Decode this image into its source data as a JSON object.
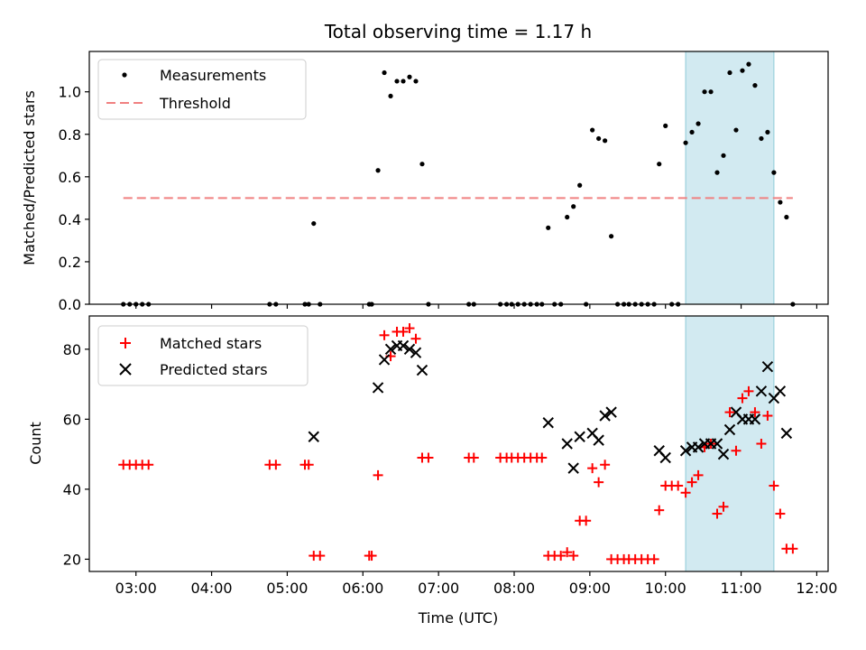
{
  "chart_data": {
    "type": "scatter",
    "title": "Total observing time = 1.17 h",
    "xlabel": "Time (UTC)",
    "x_ticks": [
      "03:00",
      "04:00",
      "05:00",
      "06:00",
      "07:00",
      "08:00",
      "09:00",
      "10:00",
      "11:00",
      "12:00"
    ],
    "xlim": [
      "02:23",
      "12:09"
    ],
    "highlight_span": {
      "start": "10:16",
      "end": "11:26",
      "color": "#add8e6"
    },
    "top_panel": {
      "ylabel": "Matched/Predicted stars",
      "ylim": [
        0,
        1.19
      ],
      "y_ticks": [
        "0.0",
        "0.2",
        "0.4",
        "0.6",
        "0.8",
        "1.0"
      ],
      "legend": {
        "position": "upper-left",
        "entries": [
          "Measurements",
          "Threshold"
        ]
      },
      "threshold": {
        "name": "Threshold",
        "value": 0.5,
        "x_start": "02:50",
        "x_end": "11:41",
        "color": "#f08080",
        "style": "dashed"
      },
      "series": [
        {
          "name": "Measurements",
          "marker": "dot",
          "color": "#000000",
          "points": [
            [
              "02:50",
              0
            ],
            [
              "02:55",
              0
            ],
            [
              "03:00",
              0
            ],
            [
              "03:05",
              0
            ],
            [
              "03:10",
              0
            ],
            [
              "04:46",
              0
            ],
            [
              "04:51",
              0
            ],
            [
              "05:14",
              0
            ],
            [
              "05:17",
              0
            ],
            [
              "05:21",
              0.38
            ],
            [
              "05:26",
              0
            ],
            [
              "06:05",
              0
            ],
            [
              "06:07",
              0
            ],
            [
              "06:12",
              0.63
            ],
            [
              "06:17",
              1.09
            ],
            [
              "06:22",
              0.98
            ],
            [
              "06:27",
              1.05
            ],
            [
              "06:32",
              1.05
            ],
            [
              "06:37",
              1.07
            ],
            [
              "06:42",
              1.05
            ],
            [
              "06:47",
              0.66
            ],
            [
              "06:52",
              0
            ],
            [
              "07:24",
              0
            ],
            [
              "07:28",
              0
            ],
            [
              "07:49",
              0
            ],
            [
              "07:54",
              0
            ],
            [
              "07:58",
              0
            ],
            [
              "08:03",
              0
            ],
            [
              "08:08",
              0
            ],
            [
              "08:13",
              0
            ],
            [
              "08:18",
              0
            ],
            [
              "08:22",
              0
            ],
            [
              "08:27",
              0.36
            ],
            [
              "08:32",
              0
            ],
            [
              "08:37",
              0
            ],
            [
              "08:42",
              0.41
            ],
            [
              "08:47",
              0.46
            ],
            [
              "08:52",
              0.56
            ],
            [
              "08:57",
              0
            ],
            [
              "09:02",
              0.82
            ],
            [
              "09:07",
              0.78
            ],
            [
              "09:12",
              0.77
            ],
            [
              "09:17",
              0.32
            ],
            [
              "09:22",
              0
            ],
            [
              "09:27",
              0
            ],
            [
              "09:31",
              0
            ],
            [
              "09:36",
              0
            ],
            [
              "09:41",
              0
            ],
            [
              "09:46",
              0
            ],
            [
              "09:51",
              0
            ],
            [
              "09:55",
              0.66
            ],
            [
              "10:00",
              0.84
            ],
            [
              "10:05",
              0
            ],
            [
              "10:10",
              0
            ],
            [
              "10:16",
              0.76
            ],
            [
              "10:21",
              0.81
            ],
            [
              "10:26",
              0.85
            ],
            [
              "10:31",
              1.0
            ],
            [
              "10:36",
              1.0
            ],
            [
              "10:41",
              0.62
            ],
            [
              "10:46",
              0.7
            ],
            [
              "10:51",
              1.09
            ],
            [
              "10:56",
              0.82
            ],
            [
              "11:01",
              1.1
            ],
            [
              "11:06",
              1.13
            ],
            [
              "11:11",
              1.03
            ],
            [
              "11:16",
              0.78
            ],
            [
              "11:21",
              0.81
            ],
            [
              "11:26",
              0.62
            ],
            [
              "11:31",
              0.48
            ],
            [
              "11:36",
              0.41
            ],
            [
              "11:41",
              0
            ]
          ]
        }
      ]
    },
    "bottom_panel": {
      "ylabel": "Count",
      "ylim": [
        16.5,
        89.5
      ],
      "y_ticks": [
        "20",
        "40",
        "60",
        "80"
      ],
      "legend": {
        "position": "upper-left",
        "entries": [
          "Matched stars",
          "Predicted stars"
        ]
      },
      "series": [
        {
          "name": "Matched stars",
          "marker": "plus",
          "color": "#ff0000",
          "points": [
            [
              "02:50",
              47
            ],
            [
              "02:55",
              47
            ],
            [
              "03:00",
              47
            ],
            [
              "03:05",
              47
            ],
            [
              "03:10",
              47
            ],
            [
              "04:46",
              47
            ],
            [
              "04:51",
              47
            ],
            [
              "05:14",
              47
            ],
            [
              "05:17",
              47
            ],
            [
              "05:21",
              21
            ],
            [
              "05:26",
              21
            ],
            [
              "06:05",
              21
            ],
            [
              "06:07",
              21
            ],
            [
              "06:12",
              44
            ],
            [
              "06:17",
              84
            ],
            [
              "06:22",
              78
            ],
            [
              "06:27",
              85
            ],
            [
              "06:32",
              85
            ],
            [
              "06:37",
              86
            ],
            [
              "06:42",
              83
            ],
            [
              "06:47",
              49
            ],
            [
              "06:52",
              49
            ],
            [
              "07:24",
              49
            ],
            [
              "07:28",
              49
            ],
            [
              "07:49",
              49
            ],
            [
              "07:54",
              49
            ],
            [
              "07:58",
              49
            ],
            [
              "08:03",
              49
            ],
            [
              "08:08",
              49
            ],
            [
              "08:13",
              49
            ],
            [
              "08:18",
              49
            ],
            [
              "08:22",
              49
            ],
            [
              "08:27",
              21
            ],
            [
              "08:32",
              21
            ],
            [
              "08:37",
              21
            ],
            [
              "08:42",
              22
            ],
            [
              "08:47",
              21
            ],
            [
              "08:52",
              31
            ],
            [
              "08:57",
              31
            ],
            [
              "09:02",
              46
            ],
            [
              "09:07",
              42
            ],
            [
              "09:12",
              47
            ],
            [
              "09:17",
              20
            ],
            [
              "09:22",
              20
            ],
            [
              "09:27",
              20
            ],
            [
              "09:31",
              20
            ],
            [
              "09:36",
              20
            ],
            [
              "09:41",
              20
            ],
            [
              "09:46",
              20
            ],
            [
              "09:51",
              20
            ],
            [
              "09:55",
              34
            ],
            [
              "10:00",
              41
            ],
            [
              "10:05",
              41
            ],
            [
              "10:10",
              41
            ],
            [
              "10:16",
              39
            ],
            [
              "10:21",
              42
            ],
            [
              "10:26",
              44
            ],
            [
              "10:31",
              52
            ],
            [
              "10:36",
              53
            ],
            [
              "10:41",
              33
            ],
            [
              "10:46",
              35
            ],
            [
              "10:51",
              62
            ],
            [
              "10:56",
              51
            ],
            [
              "11:01",
              66
            ],
            [
              "11:06",
              68
            ],
            [
              "11:11",
              62
            ],
            [
              "11:16",
              53
            ],
            [
              "11:21",
              61
            ],
            [
              "11:26",
              41
            ],
            [
              "11:31",
              33
            ],
            [
              "11:36",
              23
            ],
            [
              "11:41",
              23
            ]
          ]
        },
        {
          "name": "Predicted stars",
          "marker": "x",
          "color": "#000000",
          "points": [
            [
              "05:21",
              55
            ],
            [
              "06:12",
              69
            ],
            [
              "06:17",
              77
            ],
            [
              "06:22",
              80
            ],
            [
              "06:27",
              81
            ],
            [
              "06:32",
              81
            ],
            [
              "06:37",
              80
            ],
            [
              "06:42",
              79
            ],
            [
              "06:47",
              74
            ],
            [
              "08:27",
              59
            ],
            [
              "08:42",
              53
            ],
            [
              "08:47",
              46
            ],
            [
              "08:52",
              55
            ],
            [
              "09:02",
              56
            ],
            [
              "09:07",
              54
            ],
            [
              "09:12",
              61
            ],
            [
              "09:17",
              62
            ],
            [
              "09:55",
              51
            ],
            [
              "10:00",
              49
            ],
            [
              "10:16",
              51
            ],
            [
              "10:21",
              52
            ],
            [
              "10:26",
              52
            ],
            [
              "10:31",
              53
            ],
            [
              "10:36",
              53
            ],
            [
              "10:41",
              53
            ],
            [
              "10:46",
              50
            ],
            [
              "10:51",
              57
            ],
            [
              "10:56",
              62
            ],
            [
              "11:01",
              60
            ],
            [
              "11:06",
              60
            ],
            [
              "11:11",
              60
            ],
            [
              "11:16",
              68
            ],
            [
              "11:21",
              75
            ],
            [
              "11:26",
              66
            ],
            [
              "11:31",
              68
            ],
            [
              "11:36",
              56
            ]
          ]
        }
      ]
    }
  }
}
